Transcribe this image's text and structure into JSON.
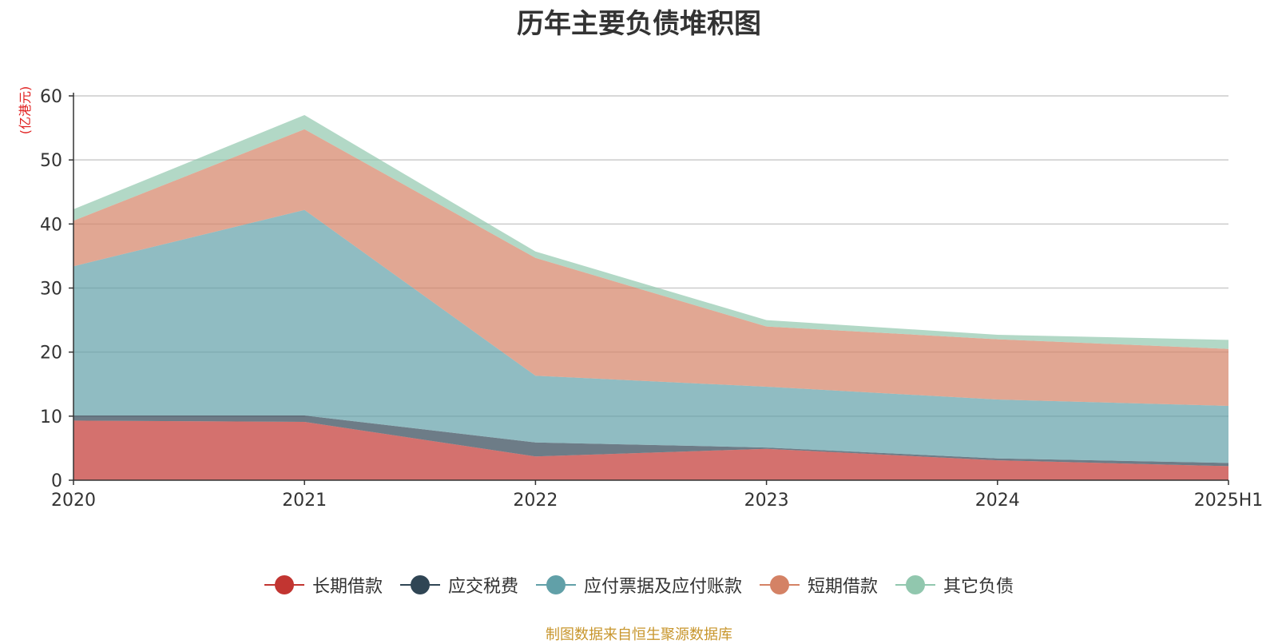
{
  "chart_data": {
    "type": "area",
    "stacked": true,
    "title": "历年主要负债堆积图",
    "ylabel": "(亿港元)",
    "xlabel": "",
    "categories": [
      "2020",
      "2021",
      "2022",
      "2023",
      "2024",
      "2025H1"
    ],
    "ylim": [
      0,
      60
    ],
    "yticks": [
      0,
      10,
      20,
      30,
      40,
      50,
      60
    ],
    "grid": true,
    "legend_position": "bottom",
    "series": [
      {
        "name": "长期借款",
        "color": "#c23531",
        "values": [
          9.3,
          9.1,
          3.7,
          4.9,
          3.1,
          2.2
        ]
      },
      {
        "name": "应交税费",
        "color": "#2f4554",
        "values": [
          0.8,
          1.0,
          2.2,
          0.2,
          0.3,
          0.5
        ]
      },
      {
        "name": "应付票据及应付账款",
        "color": "#61a0a8",
        "values": [
          23.3,
          32.1,
          10.4,
          9.5,
          9.2,
          8.9
        ]
      },
      {
        "name": "短期借款",
        "color": "#d48265",
        "values": [
          7.1,
          12.6,
          18.4,
          9.4,
          9.4,
          8.9
        ]
      },
      {
        "name": "其它负债",
        "color": "#91c7ae",
        "values": [
          1.8,
          2.2,
          1.0,
          1.0,
          0.7,
          1.4
        ]
      }
    ],
    "source": "制图数据来自恒生聚源数据库"
  }
}
